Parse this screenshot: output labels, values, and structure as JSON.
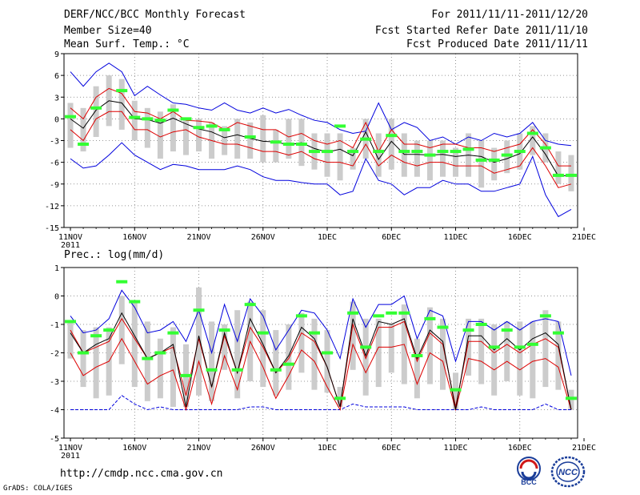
{
  "header": {
    "title": "DERF/NCC/BCC Monthly Forecast",
    "member_size": "Member Size=40",
    "variable": "Mean Surf. Temp.: °C",
    "forecast_period": "For 2011/11/11-2011/12/20",
    "fcst_started": "Fcst Started Refer Date 2011/11/10",
    "fcst_produced": "Fcst Produced Date 2011/11/11"
  },
  "footer": {
    "url": "http://cmdp.ncc.cma.gov.cn",
    "grads_credit": "GrADS: COLA/IGES",
    "logo_bcc": "BCC",
    "logo_ncc": "NCC"
  },
  "colors": {
    "max_min": "#0000dd",
    "spread": "#dd0000",
    "mean": "#000000",
    "obs": "#33ff33",
    "box": "#cccccc"
  },
  "chart_data": [
    {
      "type": "line",
      "title": "Mean Surf. Temp.: °C",
      "ylim": [
        -15,
        9
      ],
      "yticks": [
        9,
        6,
        3,
        0,
        -3,
        -6,
        -9,
        -12,
        -15
      ],
      "x_ticks": [
        1,
        6,
        11,
        16,
        21,
        26,
        31,
        36,
        41
      ],
      "x_tick_labels": [
        "11NOV",
        "16NOV",
        "21NOV",
        "26NOV",
        "1DEC",
        "6DEC",
        "11DEC",
        "16DEC",
        "21DEC"
      ],
      "x_year_label": "2011",
      "x": [
        1,
        2,
        3,
        4,
        5,
        6,
        7,
        8,
        9,
        10,
        11,
        12,
        13,
        14,
        15,
        16,
        17,
        18,
        19,
        20,
        21,
        22,
        23,
        24,
        25,
        26,
        27,
        28,
        29,
        30,
        31,
        32,
        33,
        34,
        35,
        36,
        37,
        38,
        39,
        40
      ],
      "series": [
        {
          "name": "max",
          "values": [
            6.5,
            4.5,
            6.5,
            7.7,
            6.5,
            3.2,
            4.5,
            3.3,
            2.2,
            2,
            1.5,
            1.2,
            2.2,
            1.2,
            0.8,
            1.5,
            0.8,
            1.3,
            0.5,
            -0.2,
            -0.5,
            -1.5,
            -2,
            -1.7,
            2.2,
            -1.5,
            -0.5,
            -1.2,
            -3,
            -2.5,
            -3.5,
            -2.5,
            -3,
            -2,
            -2.5,
            -2,
            -0.5,
            -3,
            -3.5,
            -3.7
          ]
        },
        {
          "name": "upper",
          "values": [
            1.5,
            0,
            3,
            4.2,
            3.5,
            1,
            0.8,
            0,
            1,
            -0.2,
            -0.3,
            -0.5,
            -1.5,
            -0.5,
            -1,
            -1.5,
            -1.5,
            -2.5,
            -2,
            -3,
            -3.5,
            -3,
            -4,
            -0.5,
            -4.5,
            -1.5,
            -3.5,
            -3.5,
            -4,
            -3.5,
            -3.5,
            -4,
            -4,
            -4.5,
            -4,
            -3.5,
            -1.5,
            -3.5,
            -6.5,
            -6.5
          ]
        },
        {
          "name": "mean",
          "values": [
            0,
            -1.3,
            1.2,
            2.5,
            2.2,
            0,
            -0.1,
            -0.6,
            0.1,
            -0.7,
            -1.4,
            -1.8,
            -2.6,
            -2.2,
            -2.7,
            -3.1,
            -3.2,
            -3.6,
            -3.3,
            -4.1,
            -4.6,
            -4.2,
            -5.1,
            -1.8,
            -5.6,
            -3.1,
            -4.9,
            -4.9,
            -5,
            -4.9,
            -5.2,
            -5,
            -5.2,
            -6,
            -5.5,
            -4.8,
            -2.5,
            -4.9,
            -7.9,
            -7.8
          ]
        },
        {
          "name": "lower",
          "values": [
            -1.5,
            -3,
            0,
            1,
            1,
            -1.5,
            -1.5,
            -2.5,
            -1.8,
            -1.5,
            -2.5,
            -3,
            -3.5,
            -3.5,
            -4,
            -4.5,
            -4.5,
            -5,
            -4.5,
            -5.5,
            -6,
            -6,
            -6.5,
            -3.5,
            -6.5,
            -5,
            -6,
            -6.5,
            -6,
            -6,
            -6.5,
            -6.5,
            -6.5,
            -7.5,
            -7,
            -6.5,
            -4,
            -6.5,
            -9.5,
            -9
          ]
        },
        {
          "name": "min",
          "values": [
            -5.5,
            -6.8,
            -6.5,
            -5,
            -3.3,
            -5,
            -6,
            -7,
            -6.3,
            -6.5,
            -7,
            -7,
            -7,
            -6.5,
            -7,
            -8,
            -8.5,
            -8.5,
            -8.8,
            -9,
            -9,
            -10.5,
            -10,
            -5.5,
            -8.5,
            -9,
            -10.5,
            -9.5,
            -9.5,
            -8.5,
            -9,
            -9,
            -10,
            -10,
            -9.5,
            -9,
            -5.2,
            -10.5,
            -13.5,
            -12.5
          ]
        },
        {
          "name": "box_top",
          "values": [
            2.2,
            1.5,
            4.5,
            6,
            5.5,
            2.5,
            1.5,
            1,
            2,
            0,
            0,
            -0.5,
            -1,
            0,
            -0.5,
            0.5,
            -1.5,
            0,
            0,
            -2,
            -2,
            -2,
            -4,
            0,
            -2,
            0,
            -2,
            -3,
            -3,
            -3,
            -4,
            -2,
            -3,
            -4,
            -3,
            -2,
            -1,
            -2,
            -4.5,
            -5
          ]
        },
        {
          "name": "box_bottom",
          "values": [
            -4,
            -4.5,
            -2.5,
            -1,
            -1.5,
            -3,
            -4,
            -5.5,
            -4.5,
            -5,
            -4.5,
            -5.5,
            -5,
            -5.5,
            -5.5,
            -6,
            -6,
            -5.5,
            -6.5,
            -7,
            -8,
            -8.5,
            -7,
            -5.5,
            -8,
            -7,
            -8,
            -8,
            -8.5,
            -8,
            -8,
            -8,
            -9.5,
            -8.5,
            -7.5,
            -7,
            -5,
            -6,
            -9,
            -10
          ]
        },
        {
          "name": "observed",
          "values": [
            0.3,
            -3.5,
            1.5,
            null,
            3.9,
            0.2,
            0,
            -0.2,
            1.2,
            0,
            -1.2,
            -1,
            -1.5,
            null,
            -2.5,
            null,
            -3.2,
            -3.5,
            -3.5,
            -4.5,
            -4.5,
            -1,
            -4.5,
            -2.8,
            -4.5,
            -2.3,
            -4.5,
            -4.5,
            -5,
            -4.5,
            -4.5,
            -4.2,
            -5.7,
            -5.7,
            -5,
            -4.5,
            -2,
            -4,
            -7.8,
            -7.8
          ]
        }
      ]
    },
    {
      "type": "line",
      "title": "Prec.: log(mm/d)",
      "ylim": [
        -5,
        1
      ],
      "yticks": [
        1,
        0,
        -1,
        -2,
        -3,
        -4,
        -5
      ],
      "x_ticks": [
        1,
        6,
        11,
        16,
        21,
        26,
        31,
        36,
        41
      ],
      "x_tick_labels": [
        "11NOV",
        "16NOV",
        "21NOV",
        "26NOV",
        "1DEC",
        "6DEC",
        "11DEC",
        "16DEC",
        "21DEC"
      ],
      "x_year_label": "2011",
      "x": [
        1,
        2,
        3,
        4,
        5,
        6,
        7,
        8,
        9,
        10,
        11,
        12,
        13,
        14,
        15,
        16,
        17,
        18,
        19,
        20,
        21,
        22,
        23,
        24,
        25,
        26,
        27,
        28,
        29,
        30,
        31,
        32,
        33,
        34,
        35,
        36,
        37,
        38,
        39,
        40
      ],
      "series": [
        {
          "name": "max",
          "values": [
            -0.7,
            -1.3,
            -1.2,
            -0.8,
            0.2,
            -0.4,
            -1.3,
            -1.2,
            -0.9,
            -1.6,
            -0.5,
            -2,
            -0.3,
            -1.6,
            -0.1,
            -0.7,
            -1.9,
            -1.2,
            -0.5,
            -0.6,
            -1.2,
            -2.2,
            -0.1,
            -1.1,
            -0.3,
            -0.3,
            0,
            -1.5,
            -0.5,
            -0.7,
            -2.3,
            -0.9,
            -0.9,
            -1.2,
            -0.9,
            -1.2,
            -0.9,
            -0.8,
            -0.9,
            -2.8
          ]
        },
        {
          "name": "upper",
          "values": [
            -1.2,
            -2,
            -1.8,
            -1.6,
            -0.8,
            -1.5,
            -2.2,
            -2,
            -1.8,
            -3.5,
            -1.5,
            -3.2,
            -1.4,
            -2.7,
            -1.1,
            -1.8,
            -2.7,
            -2.2,
            -1.3,
            -1.6,
            -2.5,
            -3.9,
            -1,
            -2.2,
            -1.1,
            -1.1,
            -0.9,
            -2.3,
            -1.3,
            -1.7,
            -3.9,
            -1.6,
            -1.6,
            -2,
            -1.7,
            -2,
            -1.7,
            -1.5,
            -1.8,
            -4
          ]
        },
        {
          "name": "mean",
          "values": [
            -1.3,
            -2,
            -1.7,
            -1.5,
            -0.6,
            -1.4,
            -2.2,
            -2,
            -1.7,
            -3.9,
            -1.4,
            -3.2,
            -1.3,
            -2.7,
            -0.8,
            -1.7,
            -2.7,
            -2.1,
            -1.1,
            -1.5,
            -2.5,
            -3.9,
            -0.8,
            -2.1,
            -0.9,
            -1,
            -0.8,
            -2.2,
            -1.2,
            -1.6,
            -4,
            -1.4,
            -1.4,
            -1.9,
            -1.5,
            -1.9,
            -1.5,
            -1.3,
            -1.7,
            -4
          ]
        },
        {
          "name": "lower",
          "values": [
            -2,
            -2.8,
            -2.5,
            -2.3,
            -1.5,
            -2.3,
            -3.1,
            -2.8,
            -2.6,
            -4,
            -2.3,
            -3.8,
            -2.1,
            -3.3,
            -1.6,
            -2.5,
            -3.6,
            -2.8,
            -1.9,
            -2.3,
            -3.2,
            -4,
            -1.7,
            -2.7,
            -1.8,
            -1.8,
            -1.7,
            -3.1,
            -2,
            -2.3,
            -4,
            -2.2,
            -2.3,
            -2.6,
            -2.3,
            -2.6,
            -2.3,
            -2.2,
            -2.5,
            -4
          ]
        },
        {
          "name": "min",
          "values": [
            -4,
            -4,
            -4,
            -4,
            -3.5,
            -3.8,
            -4,
            -3.9,
            -4,
            -4,
            -4,
            -4,
            -4,
            -4,
            -3.9,
            -3.9,
            -4,
            -4,
            -4,
            -4,
            -4,
            -4,
            -3.8,
            -3.9,
            -3.9,
            -3.9,
            -3.9,
            -4,
            -4,
            -4,
            -4,
            -4,
            -3.9,
            -4,
            -4,
            -4,
            -4,
            -3.8,
            -4,
            -4
          ]
        },
        {
          "name": "box_top",
          "values": [
            -0.9,
            -1.2,
            -1.1,
            -1.1,
            0,
            -0.2,
            -0.9,
            -1.5,
            -1.1,
            -1.7,
            0.3,
            -0.9,
            -1,
            -0.5,
            -0.2,
            -0.5,
            -1.2,
            -1,
            -0.6,
            -0.8,
            -1.2,
            -3.2,
            -0.2,
            -0.8,
            -0.8,
            -1,
            -0.3,
            -1.5,
            -0.4,
            -0.8,
            -2.7,
            -0.8,
            -0.8,
            -1,
            -0.9,
            -0.9,
            -0.9,
            -0.5,
            -0.9,
            -3.3
          ]
        },
        {
          "name": "box_bottom",
          "values": [
            -2.2,
            -3.2,
            -3.6,
            -3.5,
            -2.4,
            -3.2,
            -3.7,
            -3.6,
            -3.9,
            -3.9,
            -3.5,
            -3.7,
            -2.6,
            -3.6,
            -3,
            -3.2,
            -3.5,
            -3.3,
            -2.7,
            -3.3,
            -3.4,
            -3.9,
            -2.6,
            -3.5,
            -3.2,
            -2.7,
            -3.1,
            -3.6,
            -3.1,
            -3.3,
            -4,
            -2.8,
            -3.1,
            -3.5,
            -3,
            -3.5,
            -3.6,
            -3.2,
            -3.3,
            -4
          ]
        },
        {
          "name": "observed",
          "values": [
            -0.9,
            -2,
            -1.4,
            -1.2,
            0.5,
            -0.2,
            -2.2,
            -2,
            -1.3,
            -2.8,
            -0.5,
            -2.6,
            -1.2,
            -2.6,
            -0.3,
            -1.3,
            -2.6,
            -2.4,
            -0.7,
            -1.3,
            -2,
            -3.6,
            -0.6,
            -1.8,
            -0.7,
            -0.6,
            -0.6,
            -2.1,
            -0.8,
            -1.1,
            -3.3,
            -1.2,
            -1,
            -1.8,
            -1.2,
            -1.8,
            -1.7,
            -0.7,
            -1.3,
            -3.6
          ]
        }
      ]
    }
  ]
}
